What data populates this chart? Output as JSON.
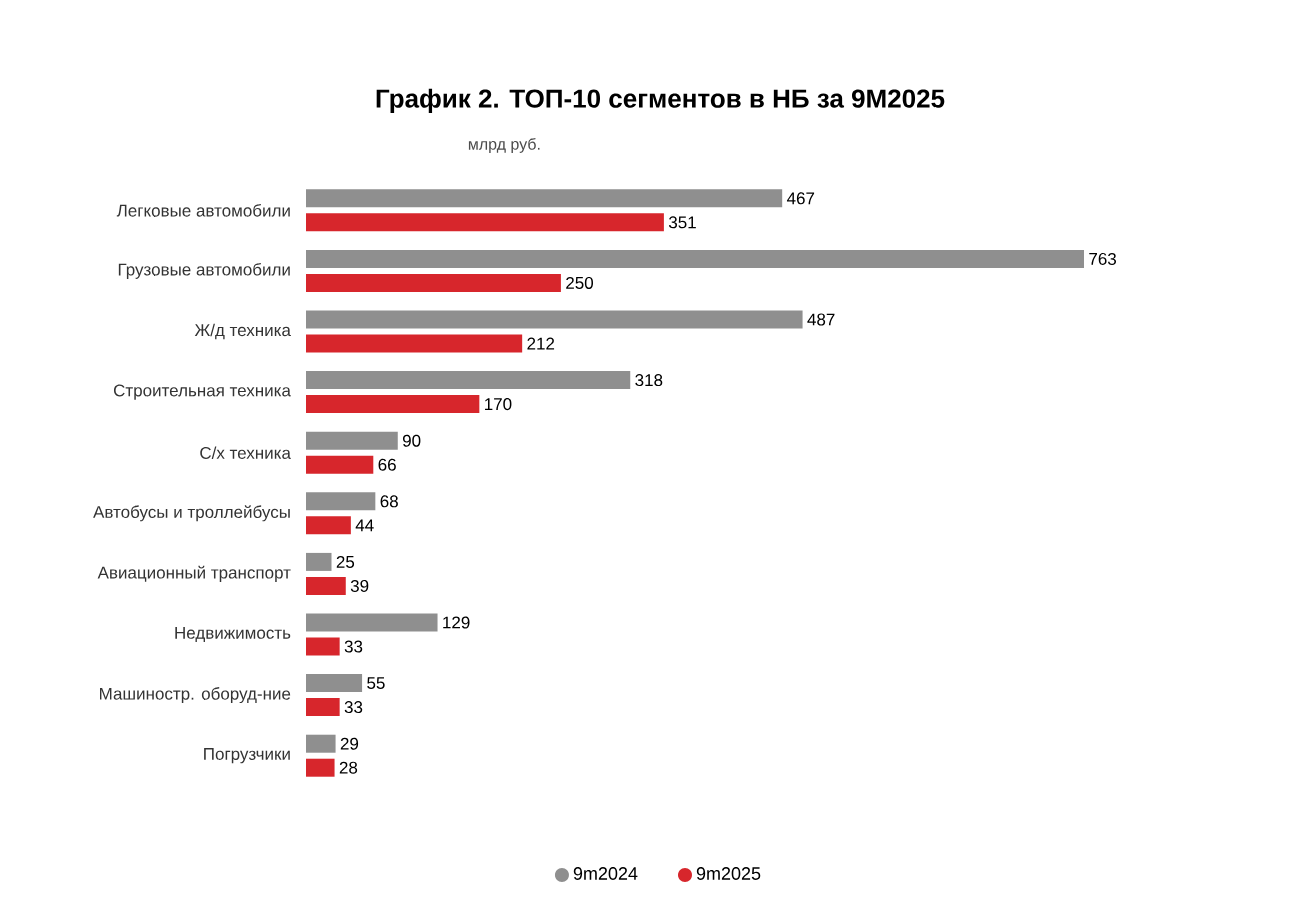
{
  "chart_data": {
    "type": "bar",
    "orientation": "horizontal",
    "title": "График 2. ТОП-10 сегментов в НБ за 9М2025",
    "subtitle": "млрд руб.",
    "categories": [
      "Легковые автомобили",
      "Грузовые автомобили",
      "Ж/д техника",
      "Строительная техника",
      "С/х техника",
      "Автобусы и троллейбусы",
      "Авиационный транспорт",
      "Недвижимость",
      "Машиностр. оборуд-ние",
      "Погрузчики"
    ],
    "series": [
      {
        "name": "9m2024",
        "color": "#8f8f8f",
        "values": [
          467,
          763,
          487,
          318,
          90,
          68,
          25,
          129,
          55,
          29
        ]
      },
      {
        "name": "9m2025",
        "color": "#d7262c",
        "values": [
          351,
          250,
          212,
          170,
          66,
          44,
          39,
          33,
          33,
          28
        ]
      }
    ],
    "data_labels": true,
    "legend": "bottom"
  }
}
